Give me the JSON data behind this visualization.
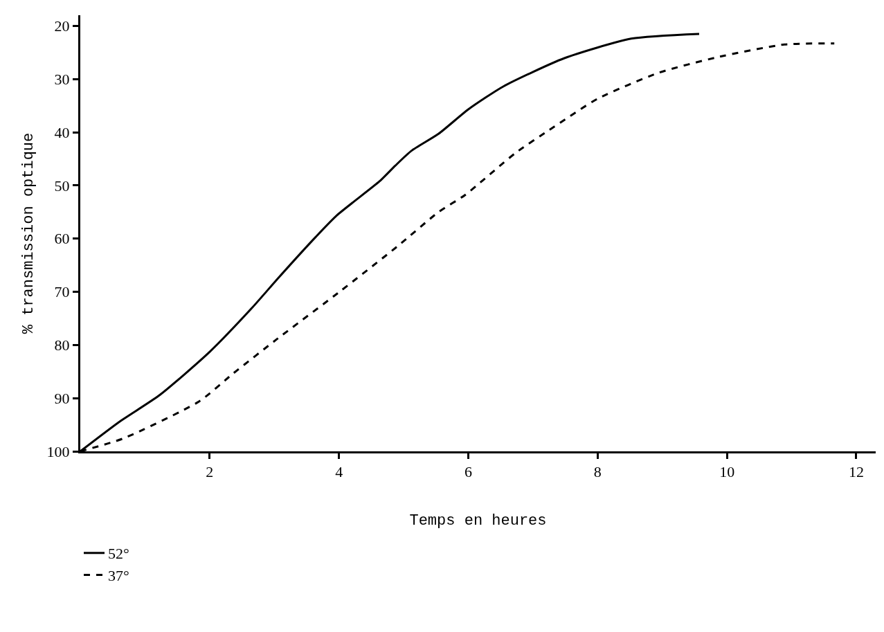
{
  "chart_data": {
    "type": "line",
    "xlabel": "Temps en heures",
    "ylabel": "% transmission optique",
    "xlim": [
      0,
      12.3
    ],
    "xticks": [
      2,
      4,
      6,
      8,
      10,
      12
    ],
    "ylim": [
      100,
      18
    ],
    "yticks": [
      20,
      30,
      40,
      50,
      60,
      70,
      80,
      90,
      100
    ],
    "grid": false,
    "legend": "bottom left",
    "marker": "none",
    "series": [
      {
        "name": "52°",
        "color": "#000000",
        "line_style": "solid",
        "x": [
          0,
          0.61,
          1.23,
          2.0,
          2.65,
          3.07,
          3.64,
          3.97,
          4.63,
          4.87,
          5.12,
          5.54,
          6.0,
          6.54,
          7.48,
          8.52,
          9.57
        ],
        "values": [
          100,
          94.4,
          89.4,
          81.3,
          73.1,
          67.3,
          59.7,
          55.6,
          49.2,
          46.3,
          43.5,
          40.3,
          35.7,
          31.4,
          26.1,
          22.4,
          21.5
        ]
      },
      {
        "name": "37°",
        "color": "#000000",
        "line_style": "dashed",
        "x": [
          0,
          0.66,
          1.84,
          2.36,
          3.03,
          4.02,
          4.91,
          5.54,
          5.95,
          6.73,
          7.25,
          8.0,
          8.95,
          9.85,
          10.89,
          11.66
        ],
        "values": [
          100,
          97.6,
          90.6,
          85.4,
          79.0,
          69.9,
          61.4,
          55.0,
          51.8,
          43.9,
          39.6,
          33.7,
          28.8,
          25.9,
          23.5,
          23.3
        ]
      }
    ]
  }
}
